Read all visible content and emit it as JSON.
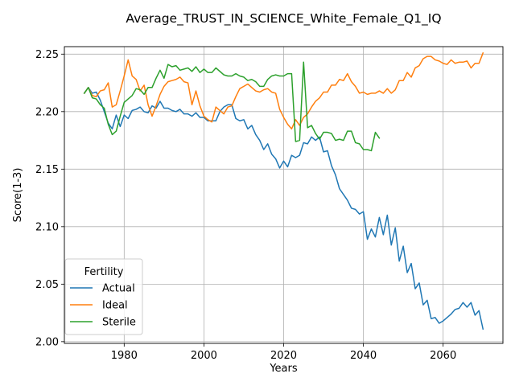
{
  "chart_data": {
    "type": "line",
    "title": "Average_TRUST_IN_SCIENCE_White_Female_Q1_IQ",
    "xlabel": "Years",
    "ylabel": "Score(1-3)",
    "xlim": [
      1965,
      2075
    ],
    "ylim": [
      1.9985,
      2.2565
    ],
    "xticks": [
      1980,
      2000,
      2020,
      2040,
      2060
    ],
    "yticks": [
      2.0,
      2.05,
      2.1,
      2.15,
      2.2,
      2.25
    ],
    "ytick_labels": [
      "2.00",
      "2.05",
      "2.10",
      "2.15",
      "2.20",
      "2.25"
    ],
    "grid": true,
    "legend": {
      "title": "Fertility",
      "position": "lower-left"
    },
    "series": [
      {
        "name": "Actual",
        "color": "#1f77b4",
        "x": [
          1970,
          1971,
          1972,
          1973,
          1974,
          1975,
          1976,
          1977,
          1978,
          1979,
          1980,
          1981,
          1982,
          1983,
          1984,
          1985,
          1986,
          1987,
          1988,
          1989,
          1990,
          1991,
          1992,
          1993,
          1994,
          1995,
          1996,
          1997,
          1998,
          1999,
          2000,
          2001,
          2002,
          2003,
          2004,
          2005,
          2006,
          2007,
          2008,
          2009,
          2010,
          2011,
          2012,
          2013,
          2014,
          2015,
          2016,
          2017,
          2018,
          2019,
          2020,
          2021,
          2022,
          2023,
          2024,
          2025,
          2026,
          2027,
          2028,
          2029,
          2030,
          2031,
          2032,
          2033,
          2034,
          2035,
          2036,
          2037,
          2038,
          2039,
          2040,
          2041,
          2042,
          2043,
          2044,
          2045,
          2046,
          2047,
          2048,
          2049,
          2050,
          2051,
          2052,
          2053,
          2054,
          2055,
          2056,
          2057,
          2058,
          2059,
          2060,
          2061,
          2062,
          2063,
          2064,
          2065,
          2066,
          2067,
          2068,
          2069,
          2070
        ],
        "values": [
          2.216,
          2.221,
          2.216,
          2.217,
          2.21,
          2.2,
          2.19,
          2.185,
          2.197,
          2.187,
          2.197,
          2.194,
          2.201,
          2.202,
          2.204,
          2.2,
          2.199,
          2.205,
          2.203,
          2.209,
          2.203,
          2.203,
          2.201,
          2.2,
          2.202,
          2.198,
          2.198,
          2.196,
          2.199,
          2.195,
          2.195,
          2.192,
          2.192,
          2.192,
          2.2,
          2.204,
          2.206,
          2.206,
          2.194,
          2.192,
          2.193,
          2.185,
          2.188,
          2.18,
          2.175,
          2.167,
          2.172,
          2.163,
          2.159,
          2.151,
          2.157,
          2.152,
          2.162,
          2.16,
          2.162,
          2.173,
          2.172,
          2.178,
          2.175,
          2.178,
          2.165,
          2.166,
          2.153,
          2.145,
          2.133,
          2.128,
          2.123,
          2.116,
          2.115,
          2.111,
          2.113,
          2.089,
          2.098,
          2.091,
          2.108,
          2.093,
          2.11,
          2.084,
          2.099,
          2.07,
          2.083,
          2.06,
          2.068,
          2.046,
          2.051,
          2.032,
          2.036,
          2.02,
          2.021,
          2.016,
          2.018,
          2.021,
          2.024,
          2.028,
          2.029,
          2.034,
          2.03,
          2.034,
          2.023,
          2.027,
          2.011
        ]
      },
      {
        "name": "Ideal",
        "color": "#ff7f0e",
        "x": [
          1970,
          1971,
          1972,
          1973,
          1974,
          1975,
          1976,
          1977,
          1978,
          1979,
          1980,
          1981,
          1982,
          1983,
          1984,
          1985,
          1986,
          1987,
          1988,
          1989,
          1990,
          1991,
          1992,
          1993,
          1994,
          1995,
          1996,
          1997,
          1998,
          1999,
          2000,
          2001,
          2002,
          2003,
          2004,
          2005,
          2006,
          2007,
          2008,
          2009,
          2010,
          2011,
          2012,
          2013,
          2014,
          2015,
          2016,
          2017,
          2018,
          2019,
          2020,
          2021,
          2022,
          2023,
          2024,
          2025,
          2026,
          2027,
          2028,
          2029,
          2030,
          2031,
          2032,
          2033,
          2034,
          2035,
          2036,
          2037,
          2038,
          2039,
          2040,
          2041,
          2042,
          2043,
          2044,
          2045,
          2046,
          2047,
          2048,
          2049,
          2050,
          2051,
          2052,
          2053,
          2054,
          2055,
          2056,
          2057,
          2058,
          2059,
          2060,
          2061,
          2062,
          2063,
          2064,
          2065,
          2066,
          2067,
          2068,
          2069,
          2070
        ],
        "values": [
          2.216,
          2.221,
          2.214,
          2.213,
          2.218,
          2.219,
          2.225,
          2.204,
          2.206,
          2.218,
          2.231,
          2.245,
          2.231,
          2.228,
          2.218,
          2.223,
          2.206,
          2.196,
          2.205,
          2.215,
          2.222,
          2.226,
          2.227,
          2.228,
          2.23,
          2.226,
          2.225,
          2.206,
          2.218,
          2.205,
          2.196,
          2.193,
          2.191,
          2.204,
          2.201,
          2.198,
          2.204,
          2.205,
          2.213,
          2.22,
          2.222,
          2.224,
          2.221,
          2.218,
          2.217,
          2.219,
          2.22,
          2.217,
          2.216,
          2.202,
          2.195,
          2.189,
          2.185,
          2.193,
          2.188,
          2.195,
          2.198,
          2.204,
          2.209,
          2.212,
          2.217,
          2.217,
          2.223,
          2.223,
          2.228,
          2.227,
          2.233,
          2.226,
          2.222,
          2.216,
          2.217,
          2.215,
          2.216,
          2.216,
          2.218,
          2.216,
          2.22,
          2.216,
          2.219,
          2.227,
          2.227,
          2.234,
          2.23,
          2.238,
          2.24,
          2.246,
          2.248,
          2.248,
          2.245,
          2.244,
          2.242,
          2.241,
          2.245,
          2.242,
          2.243,
          2.243,
          2.244,
          2.238,
          2.242,
          2.242,
          2.251
        ]
      },
      {
        "name": "Sterile",
        "color": "#2ca02c",
        "x": [
          1970,
          1971,
          1972,
          1973,
          1974,
          1975,
          1976,
          1977,
          1978,
          1979,
          1980,
          1981,
          1982,
          1983,
          1984,
          1985,
          1986,
          1987,
          1988,
          1989,
          1990,
          1991,
          1992,
          1993,
          1994,
          1995,
          1996,
          1997,
          1998,
          1999,
          2000,
          2001,
          2002,
          2003,
          2004,
          2005,
          2006,
          2007,
          2008,
          2009,
          2010,
          2011,
          2012,
          2013,
          2014,
          2015,
          2016,
          2017,
          2018,
          2019,
          2020,
          2021,
          2022,
          2023,
          2024,
          2025,
          2026,
          2027,
          2028,
          2029,
          2030,
          2031,
          2032,
          2033,
          2034,
          2035,
          2036,
          2037,
          2038,
          2039,
          2040,
          2041,
          2042,
          2043,
          2044
        ],
        "values": [
          2.216,
          2.221,
          2.212,
          2.211,
          2.206,
          2.203,
          2.189,
          2.18,
          2.183,
          2.196,
          2.208,
          2.211,
          2.214,
          2.22,
          2.219,
          2.215,
          2.221,
          2.221,
          2.229,
          2.236,
          2.229,
          2.241,
          2.239,
          2.24,
          2.236,
          2.237,
          2.238,
          2.235,
          2.239,
          2.234,
          2.237,
          2.234,
          2.234,
          2.238,
          2.235,
          2.232,
          2.231,
          2.231,
          2.233,
          2.231,
          2.23,
          2.227,
          2.228,
          2.226,
          2.222,
          2.222,
          2.228,
          2.231,
          2.232,
          2.231,
          2.231,
          2.233,
          2.233,
          2.174,
          2.175,
          2.243,
          2.186,
          2.188,
          2.181,
          2.176,
          2.182,
          2.182,
          2.181,
          2.175,
          2.176,
          2.175,
          2.183,
          2.183,
          2.173,
          2.172,
          2.167,
          2.167,
          2.166,
          2.182,
          2.177
        ]
      }
    ]
  }
}
